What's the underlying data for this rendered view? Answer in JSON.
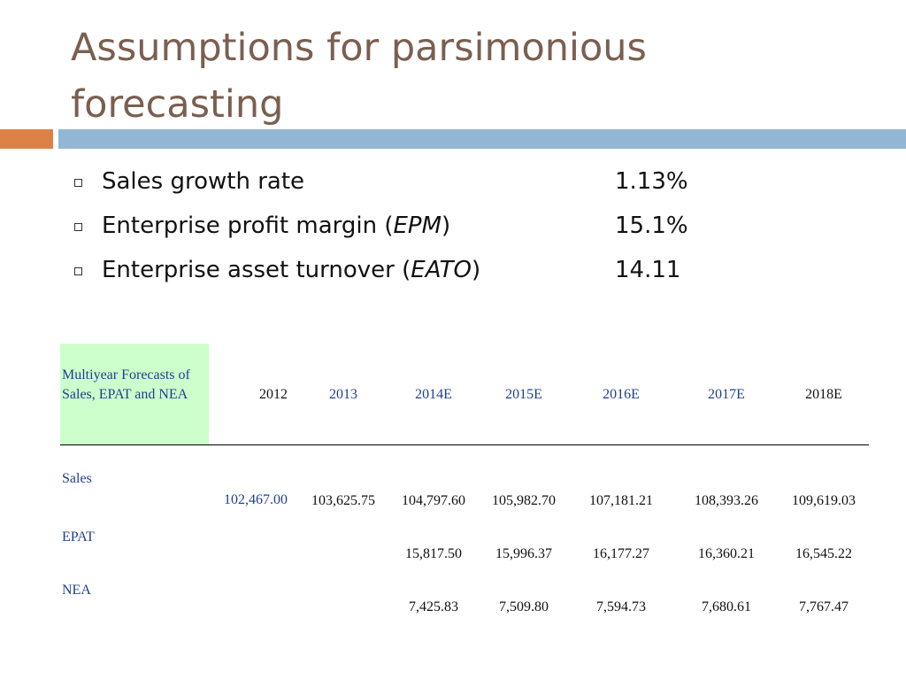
{
  "slide": {
    "title_line1": "Assumptions for parsimonious",
    "title_line2": "forecasting",
    "colors": {
      "title": "#7a5f50",
      "accent_orange": "#dd8147",
      "accent_blue": "#93b6d4",
      "table_header_bg": "#ccffcc",
      "table_blue_text": "#1f3f8f"
    }
  },
  "bullets": [
    {
      "label_pre": "Sales growth rate",
      "label_abbr": "",
      "label_post": "",
      "value": "1.13%"
    },
    {
      "label_pre": "Enterprise profit margin (",
      "label_abbr": "EPM",
      "label_post": ")",
      "value": "15.1%"
    },
    {
      "label_pre": "Enterprise asset turnover (",
      "label_abbr": "EATO",
      "label_post": ")",
      "value": "14.11"
    }
  ],
  "table": {
    "header_label": "Multiyear Forecasts of Sales, EPAT and NEA",
    "years": [
      "2012",
      "2013",
      "2014E",
      "2015E",
      "2016E",
      "2017E",
      "2018E"
    ],
    "rows": [
      {
        "label": "Sales",
        "values": [
          "102,467.00",
          "103,625.75",
          "104,797.60",
          "105,982.70",
          "107,181.21",
          "108,393.26",
          "109,619.03"
        ]
      },
      {
        "label": "EPAT",
        "values": [
          "",
          "",
          "15,817.50",
          "15,996.37",
          "16,177.27",
          "16,360.21",
          "16,545.22"
        ]
      },
      {
        "label": "NEA",
        "values": [
          "",
          "",
          "7,425.83",
          "7,509.80",
          "7,594.73",
          "7,680.61",
          "7,767.47"
        ]
      }
    ]
  }
}
